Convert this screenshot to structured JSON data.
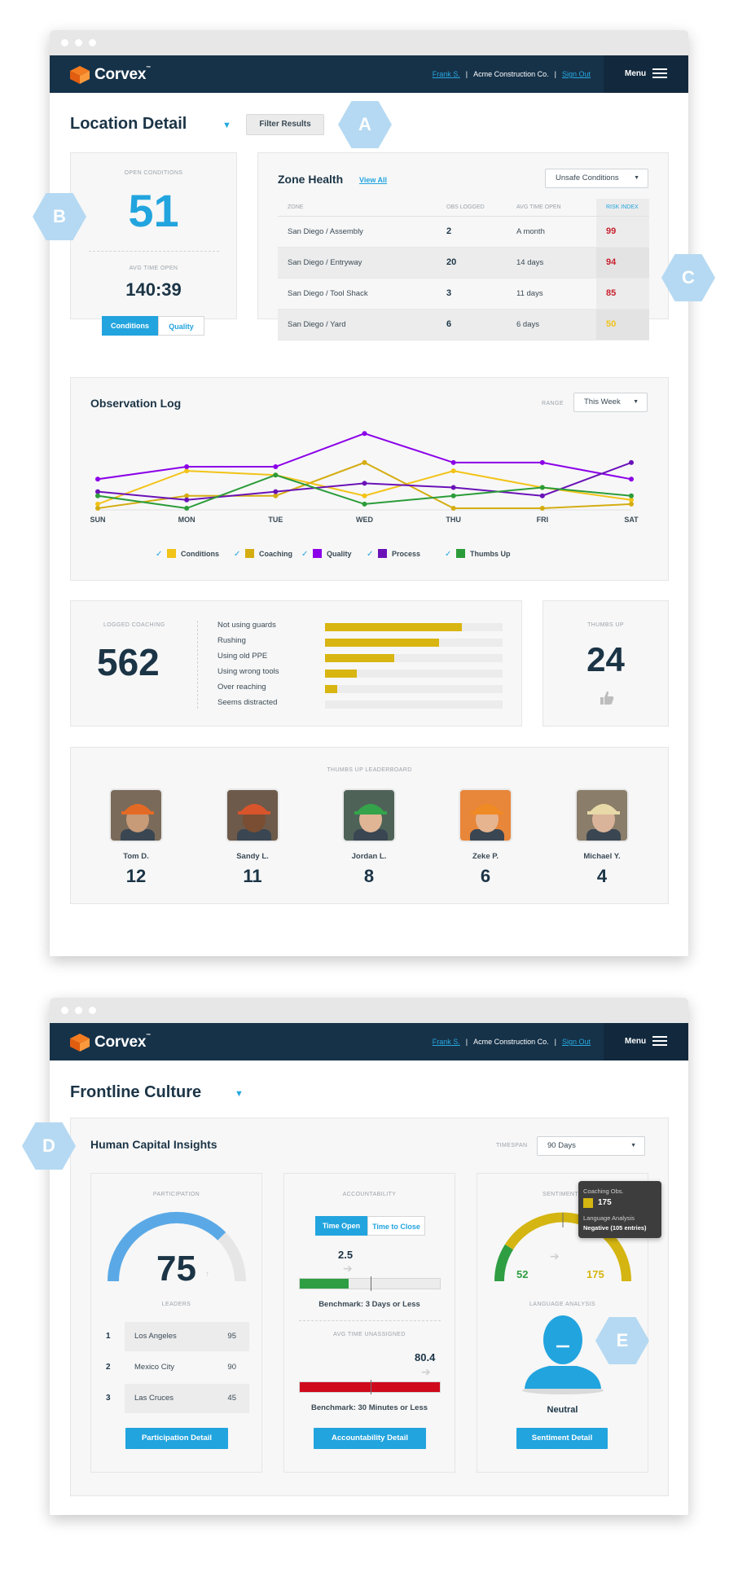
{
  "brand": {
    "name": "Corvex",
    "tm": "™"
  },
  "nav": {
    "user": "Frank S.",
    "company": "Acme Construction Co.",
    "signout": "Sign Out",
    "menu": "Menu",
    "sep": "|"
  },
  "markers": {
    "a": "A",
    "b": "B",
    "c": "C",
    "d": "D",
    "e": "E"
  },
  "location": {
    "title": "Location Detail",
    "filter_button": "Filter Results",
    "open_conditions": {
      "label": "OPEN CONDITIONS",
      "value": "51"
    },
    "avg_time_open": {
      "label": "AVG TIME OPEN",
      "value": "140:39"
    },
    "toggle": {
      "conditions": "Conditions",
      "quality": "Quality"
    },
    "zone_health": {
      "title": "Zone Health",
      "view_all": "View All",
      "dropdown": "Unsafe Conditions",
      "columns": [
        "ZONE",
        "OBS LOGGED",
        "AVG TIME OPEN",
        "RISK INDEX"
      ],
      "rows": [
        {
          "zone": "San Diego / Assembly",
          "obs": "2",
          "avg": "A month",
          "risk": "99",
          "color": "#c8202e"
        },
        {
          "zone": "San Diego / Entryway",
          "obs": "20",
          "avg": "14 days",
          "risk": "94",
          "color": "#c8202e"
        },
        {
          "zone": "San Diego / Tool Shack",
          "obs": "3",
          "avg": "11 days",
          "risk": "85",
          "color": "#c8202e"
        },
        {
          "zone": "San Diego / Yard",
          "obs": "6",
          "avg": "6 days",
          "risk": "50",
          "color": "#f2c318"
        }
      ]
    },
    "observation_log": {
      "title": "Observation Log",
      "range_label": "RANGE",
      "range_value": "This Week"
    },
    "coaching": {
      "label": "LOGGED COACHING",
      "value": "562",
      "bars": [
        {
          "label": "Not using guards",
          "pct": 0.77
        },
        {
          "label": "Rushing",
          "pct": 0.64
        },
        {
          "label": "Using old PPE",
          "pct": 0.39
        },
        {
          "label": "Using wrong tools",
          "pct": 0.18
        },
        {
          "label": "Over reaching",
          "pct": 0.07
        },
        {
          "label": "Seems distracted",
          "pct": 0.0
        }
      ]
    },
    "thumbs_up": {
      "label": "THUMBS UP",
      "value": "24"
    },
    "leaderboard": {
      "label": "THUMBS UP LEADERBOARD",
      "people": [
        {
          "name": "Tom D.",
          "score": "12"
        },
        {
          "name": "Sandy L.",
          "score": "11"
        },
        {
          "name": "Jordan L.",
          "score": "8"
        },
        {
          "name": "Zeke P.",
          "score": "6"
        },
        {
          "name": "Michael Y.",
          "score": "4"
        }
      ]
    }
  },
  "chart_data": {
    "type": "line",
    "title": "Observation Log",
    "categories": [
      "SUN",
      "MON",
      "TUE",
      "WED",
      "THU",
      "FRI",
      "SAT"
    ],
    "ylim": [
      0,
      20
    ],
    "series": [
      {
        "name": "Conditions",
        "color": "#f2c318",
        "values": [
          1,
          9,
          8,
          3,
          9,
          5,
          2
        ]
      },
      {
        "name": "Coaching",
        "color": "#d4ad12",
        "values": [
          0,
          3,
          3,
          11,
          0,
          0,
          1
        ]
      },
      {
        "name": "Quality",
        "color": "#8b00e8",
        "values": [
          7,
          10,
          10,
          18,
          11,
          11,
          7
        ]
      },
      {
        "name": "Process",
        "color": "#6a12b8",
        "values": [
          4,
          2,
          4,
          6,
          5,
          3,
          11
        ]
      },
      {
        "name": "Thumbs Up",
        "color": "#2b9c3a",
        "values": [
          3,
          0,
          8,
          1,
          3,
          5,
          3
        ]
      }
    ]
  },
  "culture": {
    "title": "Frontline Culture",
    "hci_title": "Human Capital Insights",
    "timespan_label": "TIMESPAN",
    "timespan_value": "90 Days",
    "participation": {
      "label": "PARTICIPATION",
      "value": "75",
      "gauge_pct": 0.75,
      "leaders_label": "LEADERS",
      "leaders": [
        {
          "rank": "1",
          "name": "Los Angeles",
          "score": "95"
        },
        {
          "rank": "2",
          "name": "Mexico City",
          "score": "90"
        },
        {
          "rank": "3",
          "name": "Las Cruces",
          "score": "45"
        }
      ],
      "button": "Participation Detail"
    },
    "accountability": {
      "label": "ACCOUNTABILITY",
      "toggle_a": "Time Open",
      "toggle_b": "Time to Close",
      "value1": "2.5",
      "fill1": 0.35,
      "benchmark1": "Benchmark: 3 Days or Less",
      "unassigned_label": "AVG TIME UNASSIGNED",
      "value2": "80.4",
      "fill2": 1.0,
      "benchmark2": "Benchmark:  30 Minutes or Less",
      "button": "Accountability Detail"
    },
    "sentiment": {
      "label": "SENTIMENT",
      "left_value": "52",
      "right_value": "175",
      "tooltip_title": "Coaching Obs.",
      "tooltip_value": "175",
      "tooltip_sub": "Language Analysis",
      "tooltip_detail": "Negative (105 entries)",
      "language_label": "LANGUAGE ANALYSIS",
      "state": "Neutral",
      "button": "Sentiment Detail"
    }
  }
}
